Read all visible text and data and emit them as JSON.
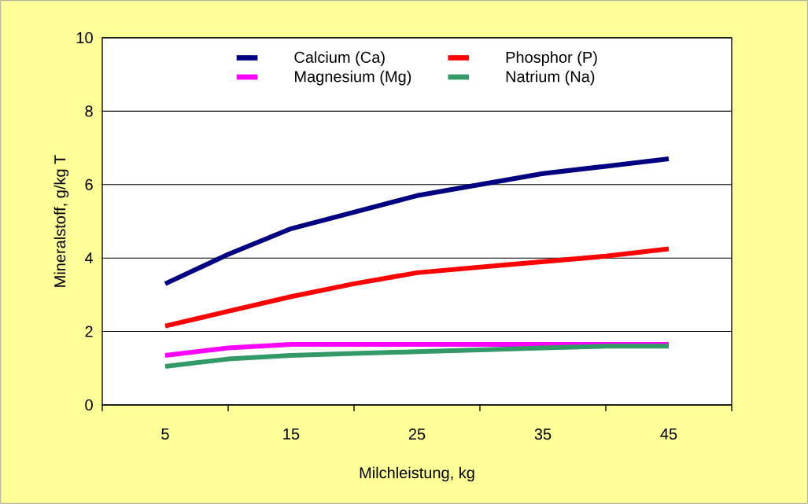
{
  "chart_data": {
    "type": "line",
    "xlabel": "Milchleistung, kg",
    "ylabel": "Mineralstoff, g/kg T",
    "x": [
      5,
      10,
      15,
      20,
      25,
      30,
      35,
      40,
      45
    ],
    "series": [
      {
        "name": "Calcium (Ca)",
        "color": "#000080",
        "values": [
          3.3,
          4.1,
          4.8,
          5.25,
          5.7,
          6.0,
          6.3,
          6.5,
          6.7
        ]
      },
      {
        "name": "Phosphor (P)",
        "color": "#ff0000",
        "values": [
          2.15,
          2.55,
          2.95,
          3.3,
          3.6,
          3.75,
          3.9,
          4.05,
          4.25
        ]
      },
      {
        "name": "Magnesium (Mg)",
        "color": "#ff00ff",
        "values": [
          1.35,
          1.55,
          1.65,
          1.65,
          1.65,
          1.65,
          1.65,
          1.65,
          1.65
        ]
      },
      {
        "name": "Natrium (Na)",
        "color": "#339966",
        "values": [
          1.05,
          1.25,
          1.35,
          1.4,
          1.45,
          1.5,
          1.55,
          1.6,
          1.6
        ]
      }
    ],
    "xlim": [
      0,
      50
    ],
    "xticks": [
      5,
      15,
      25,
      35,
      45,
      {
        "value": 0,
        "label": null
      },
      {
        "value": 10,
        "label": null
      },
      {
        "value": 20,
        "label": null
      },
      {
        "value": 30,
        "label": null
      },
      {
        "value": 40,
        "label": null
      },
      {
        "value": 50,
        "label": null
      }
    ],
    "ylim": [
      0,
      10
    ],
    "yticks": [
      0,
      2,
      4,
      6,
      8,
      10
    ],
    "grid": "y",
    "legend": "top"
  }
}
